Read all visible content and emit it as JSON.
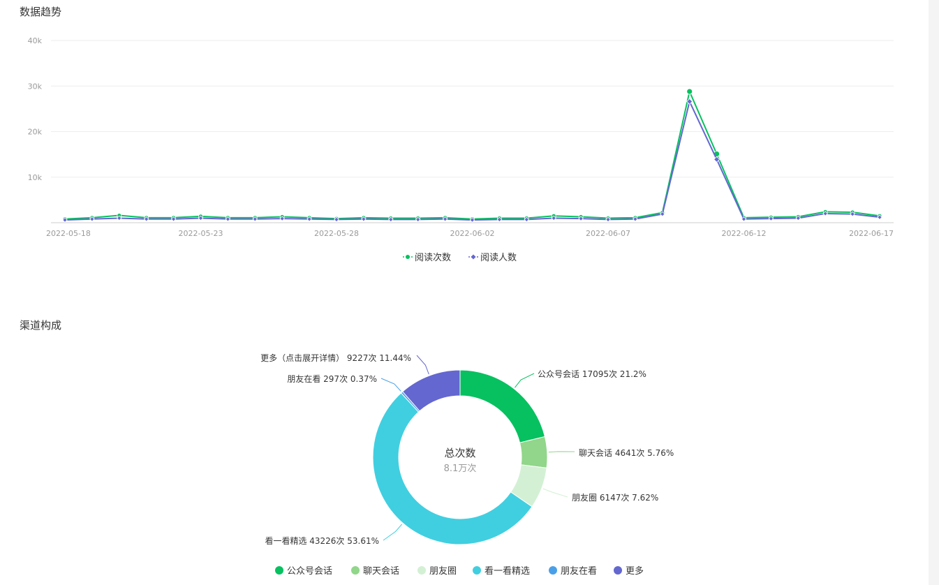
{
  "sections": {
    "trend_title": "数据趋势",
    "channel_title": "渠道构成"
  },
  "chart_data": [
    {
      "type": "line",
      "title": "数据趋势",
      "ylim": [
        0,
        40000
      ],
      "y_ticks": [
        "40k",
        "30k",
        "20k",
        "10k"
      ],
      "y_tick_values": [
        40000,
        30000,
        20000,
        10000
      ],
      "x": [
        "2022-05-18",
        "2022-05-19",
        "2022-05-20",
        "2022-05-21",
        "2022-05-22",
        "2022-05-23",
        "2022-05-24",
        "2022-05-25",
        "2022-05-26",
        "2022-05-27",
        "2022-05-28",
        "2022-05-29",
        "2022-05-30",
        "2022-05-31",
        "2022-06-01",
        "2022-06-02",
        "2022-06-03",
        "2022-06-04",
        "2022-06-05",
        "2022-06-06",
        "2022-06-07",
        "2022-06-08",
        "2022-06-09",
        "2022-06-10",
        "2022-06-11",
        "2022-06-12",
        "2022-06-13",
        "2022-06-14",
        "2022-06-15",
        "2022-06-16",
        "2022-06-17"
      ],
      "x_tick_labels": [
        "2022-05-18",
        "2022-05-23",
        "2022-05-28",
        "2022-06-02",
        "2022-06-07",
        "2022-06-12",
        "2022-06-17"
      ],
      "grid": true,
      "legend_position": "bottom-center",
      "series": [
        {
          "name": "阅读次数",
          "color": "#07c160",
          "marker": "circle",
          "values": [
            800,
            1100,
            1600,
            1100,
            1100,
            1400,
            1100,
            1100,
            1300,
            1100,
            900,
            1100,
            1000,
            1000,
            1100,
            800,
            1000,
            1000,
            1500,
            1300,
            1000,
            1100,
            2200,
            28800,
            15100,
            1100,
            1200,
            1300,
            2400,
            2300,
            1500
          ]
        },
        {
          "name": "阅读人数",
          "color": "#6467d0",
          "marker": "diamond",
          "values": [
            600,
            800,
            1000,
            800,
            800,
            1000,
            800,
            800,
            900,
            800,
            700,
            800,
            700,
            700,
            800,
            600,
            700,
            700,
            1000,
            900,
            700,
            800,
            1900,
            26600,
            13900,
            800,
            900,
            1000,
            2000,
            1900,
            1200
          ]
        }
      ]
    },
    {
      "type": "pie",
      "title": "渠道构成",
      "center_title": "总次数",
      "center_value": "8.1万次",
      "legend_position": "bottom-center",
      "slices": [
        {
          "name": "公众号会话",
          "value": 17095,
          "label": "公众号会话 17095次 21.2%",
          "color": "#07c160",
          "legend_color": "#07c160"
        },
        {
          "name": "聊天会话",
          "value": 4641,
          "label": "聊天会话 4641次 5.76%",
          "color": "#91d68a",
          "legend_color": "#91d68a"
        },
        {
          "name": "朋友圈",
          "value": 6147,
          "label": "朋友圈 6147次 7.62%",
          "color": "#d3f0d4",
          "legend_color": "#d3f0d4"
        },
        {
          "name": "看一看精选",
          "value": 43226,
          "label": "看一看精选 43226次 53.61%",
          "color": "#40cfe0",
          "legend_color": "#40cfe0"
        },
        {
          "name": "朋友在看",
          "value": 297,
          "label": "朋友在看 297次 0.37%",
          "color": "#4aa0e8",
          "legend_color": "#4aa0e8"
        },
        {
          "name": "更多",
          "value": 9227,
          "label": "更多（点击展开详情） 9227次 11.44%",
          "color": "#6467d0",
          "legend_color": "#6467d0"
        }
      ]
    }
  ]
}
